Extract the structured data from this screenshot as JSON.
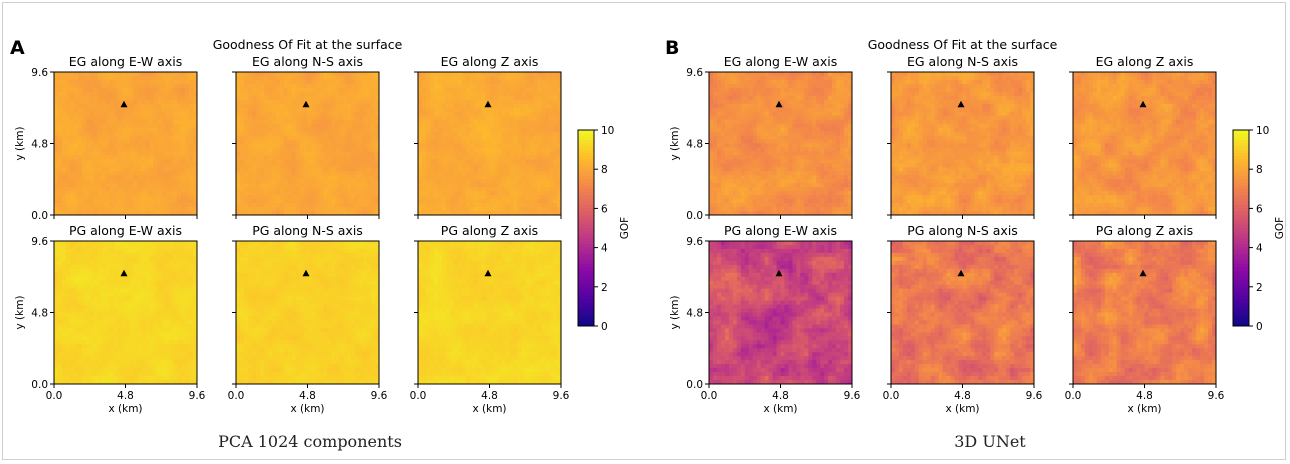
{
  "chart_data": [
    {
      "type": "heatmap",
      "panel_letter": "A",
      "suptitle": "Goodness Of Fit at the surface",
      "caption": "PCA 1024 components",
      "xlabel": "x (km)",
      "ylabel": "y (km)",
      "xlim": [
        0.0,
        9.6
      ],
      "ylim": [
        0.0,
        9.6
      ],
      "ticks": [
        0.0,
        4.8,
        9.6
      ],
      "tick_labels": [
        "0.0",
        "4.8",
        "9.6"
      ],
      "marker_location_km": [
        4.7,
        7.4
      ],
      "colorbar": {
        "label": "GOF",
        "range": [
          0,
          10
        ],
        "ticks": [
          0,
          2,
          4,
          6,
          8,
          10
        ],
        "tick_labels": [
          "0",
          "2",
          "4",
          "6",
          "8",
          "10"
        ],
        "colormap": "plasma"
      },
      "subplots": [
        {
          "title": "EG along E-W axis",
          "mean_gof": 8.0,
          "variability": 0.5
        },
        {
          "title": "EG along N-S axis",
          "mean_gof": 8.0,
          "variability": 0.5
        },
        {
          "title": "EG along Z axis",
          "mean_gof": 8.1,
          "variability": 0.5
        },
        {
          "title": "PG along E-W axis",
          "mean_gof": 9.2,
          "variability": 0.4
        },
        {
          "title": "PG along N-S axis",
          "mean_gof": 9.1,
          "variability": 0.4
        },
        {
          "title": "PG along Z axis",
          "mean_gof": 9.2,
          "variability": 0.4
        }
      ]
    },
    {
      "type": "heatmap",
      "panel_letter": "B",
      "suptitle": "Goodness Of Fit at the surface",
      "caption": "3D UNet",
      "xlabel": "x (km)",
      "ylabel": "y (km)",
      "xlim": [
        0.0,
        9.6
      ],
      "ylim": [
        0.0,
        9.6
      ],
      "ticks": [
        0.0,
        4.8,
        9.6
      ],
      "tick_labels": [
        "0.0",
        "4.8",
        "9.6"
      ],
      "marker_location_km": [
        4.7,
        7.4
      ],
      "colorbar": {
        "label": "GOF",
        "range": [
          0,
          10
        ],
        "ticks": [
          0,
          2,
          4,
          6,
          8,
          10
        ],
        "tick_labels": [
          "0",
          "2",
          "4",
          "6",
          "8",
          "10"
        ],
        "colormap": "plasma"
      },
      "subplots": [
        {
          "title": "EG along E-W axis",
          "mean_gof": 7.4,
          "variability": 0.9
        },
        {
          "title": "EG along N-S axis",
          "mean_gof": 7.6,
          "variability": 0.9
        },
        {
          "title": "EG along Z axis",
          "mean_gof": 7.5,
          "variability": 0.9
        },
        {
          "title": "PG along E-W axis",
          "mean_gof": 5.0,
          "variability": 1.8
        },
        {
          "title": "PG along N-S axis",
          "mean_gof": 6.6,
          "variability": 1.5
        },
        {
          "title": "PG along Z axis",
          "mean_gof": 6.8,
          "variability": 1.4
        }
      ]
    }
  ]
}
